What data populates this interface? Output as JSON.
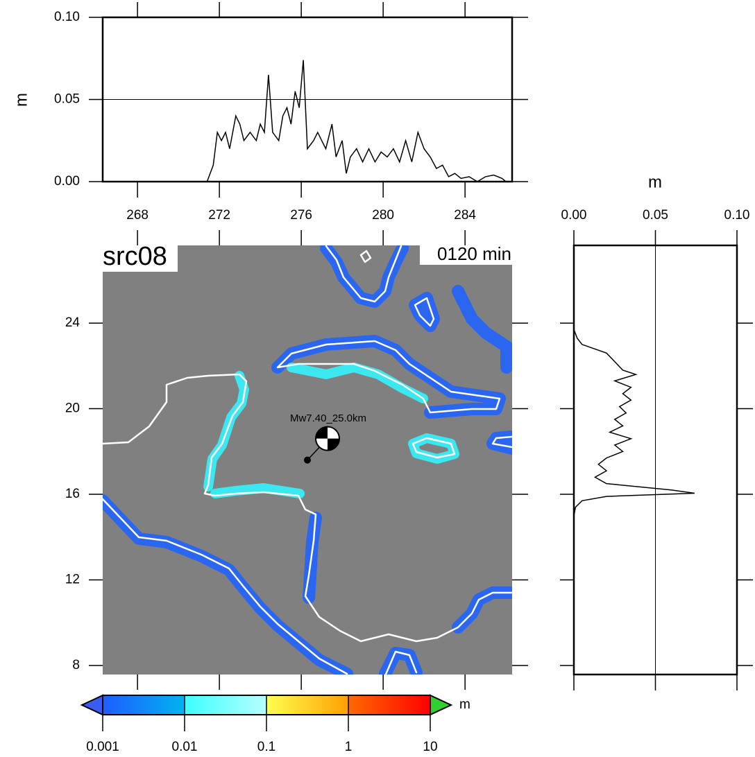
{
  "chart_data": [
    {
      "type": "line",
      "ylabel": "m",
      "color": "#000000",
      "grid": true,
      "xlim": [
        266.3,
        286.3
      ],
      "xticks": [
        268,
        272,
        276,
        280,
        284
      ],
      "ylim": [
        0,
        0.1
      ],
      "yticks": [
        {
          "value": 0,
          "label": "0.00"
        },
        {
          "value": 0.05,
          "label": "0.05"
        },
        {
          "value": 0.1,
          "label": "0.10"
        }
      ],
      "x": [
        266.5,
        268,
        270,
        271.4,
        271.7,
        271.9,
        272.1,
        272.3,
        272.5,
        272.8,
        273.0,
        273.2,
        273.5,
        273.8,
        274.0,
        274.2,
        274.4,
        274.6,
        274.9,
        275.1,
        275.3,
        275.5,
        275.7,
        275.9,
        276.1,
        276.3,
        276.6,
        276.8,
        277.0,
        277.2,
        277.5,
        277.7,
        278.0,
        278.2,
        278.4,
        278.7,
        279.0,
        279.3,
        279.6,
        279.9,
        280.2,
        280.5,
        280.8,
        281.1,
        281.4,
        281.7,
        282.0,
        282.3,
        282.6,
        282.9,
        283.2,
        283.5,
        283.8,
        284.2,
        284.6,
        285.0,
        285.4,
        285.8,
        286.0
      ],
      "values": [
        0,
        0,
        0,
        0,
        0.01,
        0.03,
        0.025,
        0.03,
        0.02,
        0.04,
        0.035,
        0.025,
        0.03,
        0.025,
        0.035,
        0.03,
        0.065,
        0.03,
        0.025,
        0.04,
        0.045,
        0.035,
        0.055,
        0.045,
        0.074,
        0.02,
        0.025,
        0.03,
        0.025,
        0.02,
        0.035,
        0.015,
        0.025,
        0.005,
        0.015,
        0.02,
        0.012,
        0.02,
        0.012,
        0.018,
        0.015,
        0.02,
        0.012,
        0.025,
        0.012,
        0.03,
        0.02,
        0.015,
        0.008,
        0.01,
        0.003,
        0.005,
        0.002,
        0.003,
        0,
        0.003,
        0.004,
        0.002,
        0
      ]
    },
    {
      "type": "line",
      "xlabel": "m",
      "color": "#000000",
      "grid": true,
      "xlim": [
        0,
        0.1
      ],
      "xticks": [
        {
          "value": 0,
          "label": "0.00"
        },
        {
          "value": 0.05,
          "label": "0.05"
        },
        {
          "value": 0.1,
          "label": "0.10"
        }
      ],
      "ylim": [
        7.58,
        27.63
      ],
      "yticks": [
        8,
        12,
        16,
        20,
        24
      ],
      "y": [
        27.5,
        23.7,
        23.3,
        23.0,
        22.6,
        22.2,
        21.8,
        21.6,
        21.3,
        21.0,
        20.7,
        20.4,
        20.1,
        19.8,
        19.5,
        19.2,
        18.9,
        18.6,
        18.3,
        18.0,
        17.7,
        17.4,
        17.1,
        16.8,
        16.5,
        16.2,
        16.05,
        15.9,
        15.7,
        15.4,
        15.0,
        7.6
      ],
      "values": [
        0,
        0,
        0.002,
        0.005,
        0.02,
        0.025,
        0.03,
        0.038,
        0.025,
        0.035,
        0.03,
        0.035,
        0.028,
        0.032,
        0.025,
        0.03,
        0.022,
        0.035,
        0.025,
        0.03,
        0.02,
        0.015,
        0.02,
        0.013,
        0.02,
        0.06,
        0.074,
        0.02,
        0.005,
        0.001,
        0,
        0
      ]
    },
    {
      "type": "map",
      "title": "src08",
      "time_label": "0120 min",
      "event_label": "Mw7.40_25.0km",
      "background": "#808080",
      "xlim": [
        266.3,
        286.3
      ],
      "xticks": [
        268,
        272,
        276,
        280,
        284
      ],
      "ylim": [
        7.58,
        27.63
      ],
      "yticks": [
        8,
        12,
        16,
        20,
        24
      ],
      "epicenter": {
        "x": 276.3,
        "y": 17.6
      }
    },
    {
      "type": "colorbar",
      "label": "m",
      "log_scale": true,
      "lim": [
        0.001,
        10
      ],
      "ticks": [
        0.001,
        0.01,
        0.1,
        1,
        10
      ],
      "colors": [
        "#1f5cff",
        "#00b4f0",
        "#3cffff",
        "#b8ffff",
        "#ffff50",
        "#ffa000",
        "#ff6a00",
        "#ff0000"
      ],
      "under_color": "#3a5cf0",
      "over_color": "#30d030"
    }
  ]
}
